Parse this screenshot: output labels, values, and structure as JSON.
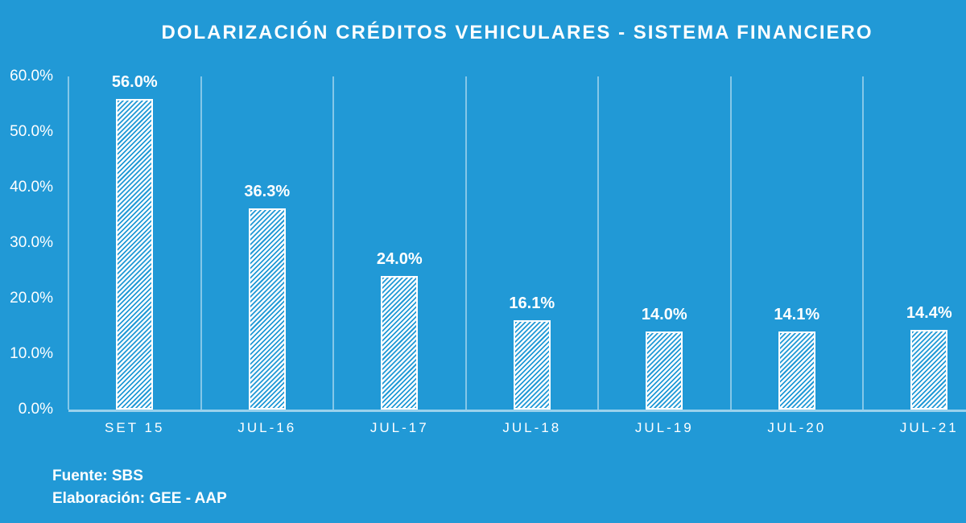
{
  "chart_data": {
    "type": "bar",
    "title": "DOLARIZACIÓN CRÉDITOS VEHICULARES - SISTEMA FINANCIERO",
    "categories": [
      "SET 15",
      "JUL-16",
      "JUL-17",
      "JUL-18",
      "JUL-19",
      "JUL-20",
      "JUL-21"
    ],
    "values": [
      56.0,
      36.3,
      24.0,
      16.1,
      14.0,
      14.1,
      14.4
    ],
    "data_labels": [
      "56.0%",
      "36.3%",
      "24.0%",
      "16.1%",
      "14.0%",
      "14.1%",
      "14.4%"
    ],
    "xlabel": "",
    "ylabel": "",
    "ylim": [
      0,
      60
    ],
    "y_ticks": [
      {
        "label": "60.0%",
        "value": 60
      },
      {
        "label": "50.0%",
        "value": 50
      },
      {
        "label": "40.0%",
        "value": 40
      },
      {
        "label": "30.0%",
        "value": 30
      },
      {
        "label": "20.0%",
        "value": 20
      },
      {
        "label": "10.0%",
        "value": 10
      },
      {
        "label": "0.0%",
        "value": 0
      }
    ],
    "grid": "vertical category separators only, no horizontal gridlines",
    "legend_position": "none",
    "bar_style": "white bar with blue diagonal hatch stripes (/)"
  },
  "footer": {
    "source": "Fuente: SBS",
    "elaboration": "Elaboración: GEE - AAP"
  },
  "colors": {
    "background": "#2199D6",
    "bar_fill": "#FFFFFF",
    "hatch_stripe": "#2199D6",
    "text": "#FFFFFF",
    "gridline": "rgba(255,255,255,0.45)",
    "axis_line": "rgba(255,255,255,0.55)"
  }
}
